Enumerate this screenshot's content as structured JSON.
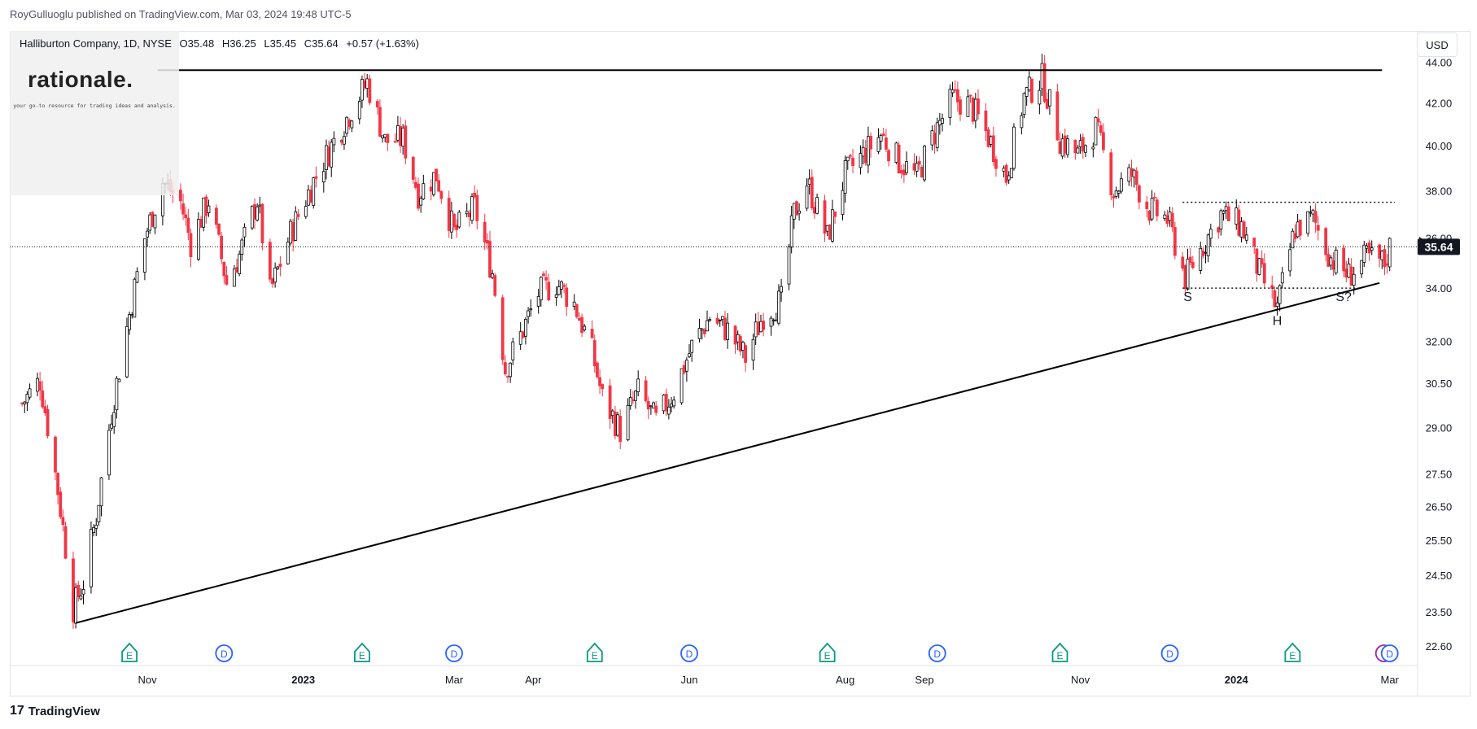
{
  "publisher": "RoyGulluoglu published on TradingView.com, Mar 03, 2024 19:48 UTC-5",
  "symbol": {
    "name": "Halliburton Company, 1D, NYSE",
    "open": "O35.48",
    "high": "H36.25",
    "low": "L35.45",
    "close": "C35.64",
    "change": "+0.57 (+1.63%)"
  },
  "logo": {
    "word": "rationale.",
    "tagline": "your go-to resource for trading ideas and analysis."
  },
  "currency": "USD",
  "footer": {
    "brand": "TradingView",
    "icon": "tradingview-logo-icon"
  },
  "colors": {
    "up": "#000000",
    "down": "#f23645",
    "trendline": "#000000",
    "event_green": "#089981",
    "event_blue": "#2962ff",
    "price_label_bg": "#131722"
  },
  "chart_data": {
    "type": "candlestick",
    "y_scale": "log",
    "ylim": [
      22.1,
      45.6
    ],
    "y_ticks": [
      "44.00",
      "42.00",
      "40.00",
      "38.00",
      "36.00",
      "34.00",
      "32.00",
      "30.50",
      "29.00",
      "27.50",
      "26.50",
      "25.50",
      "24.50",
      "23.50",
      "22.60"
    ],
    "x_ticks": [
      "Nov",
      "2023",
      "Mar",
      "Apr",
      "Jun",
      "Aug",
      "Sep",
      "Nov",
      "2024",
      "Mar"
    ],
    "last_price": "35.64",
    "price_path": [
      [
        "2022-09-13",
        29.8
      ],
      [
        "2022-09-20",
        30.6
      ],
      [
        "2022-09-27",
        27.0
      ],
      [
        "2022-10-03",
        23.6
      ],
      [
        "2022-10-07",
        24.3
      ],
      [
        "2022-10-12",
        26.2
      ],
      [
        "2022-10-18",
        29.5
      ],
      [
        "2022-10-24",
        32.5
      ],
      [
        "2022-10-31",
        36.0
      ],
      [
        "2022-11-07",
        38.4
      ],
      [
        "2022-11-14",
        37.5
      ],
      [
        "2022-11-18",
        35.8
      ],
      [
        "2022-11-25",
        37.6
      ],
      [
        "2022-12-02",
        34.2
      ],
      [
        "2022-12-07",
        35.3
      ],
      [
        "2022-12-14",
        37.6
      ],
      [
        "2022-12-19",
        33.8
      ],
      [
        "2022-12-27",
        36.2
      ],
      [
        "2023-01-05",
        38.4
      ],
      [
        "2023-01-13",
        40.2
      ],
      [
        "2023-01-26",
        43.0
      ],
      [
        "2023-02-02",
        40.2
      ],
      [
        "2023-02-09",
        40.3
      ],
      [
        "2023-02-15",
        37.9
      ],
      [
        "2023-02-22",
        38.7
      ],
      [
        "2023-03-01",
        36.2
      ],
      [
        "2023-03-09",
        37.3
      ],
      [
        "2023-03-16",
        34.6
      ],
      [
        "2023-03-21",
        31.0
      ],
      [
        "2023-03-27",
        32.2
      ],
      [
        "2023-04-03",
        33.8
      ],
      [
        "2023-04-10",
        34.2
      ],
      [
        "2023-04-17",
        33.4
      ],
      [
        "2023-04-24",
        31.6
      ],
      [
        "2023-04-28",
        30.0
      ],
      [
        "2023-05-05",
        28.9
      ],
      [
        "2023-05-12",
        30.2
      ],
      [
        "2023-05-19",
        29.2
      ],
      [
        "2023-05-26",
        30.2
      ],
      [
        "2023-06-02",
        31.8
      ],
      [
        "2023-06-09",
        32.9
      ],
      [
        "2023-06-16",
        32.4
      ],
      [
        "2023-06-23",
        31.4
      ],
      [
        "2023-06-30",
        33.0
      ],
      [
        "2023-07-07",
        33.5
      ],
      [
        "2023-07-12",
        37.0
      ],
      [
        "2023-07-17",
        38.4
      ],
      [
        "2023-07-25",
        36.0
      ],
      [
        "2023-08-01",
        38.7
      ],
      [
        "2023-08-08",
        39.6
      ],
      [
        "2023-08-15",
        40.5
      ],
      [
        "2023-08-22",
        39.3
      ],
      [
        "2023-08-29",
        38.6
      ],
      [
        "2023-09-05",
        40.6
      ],
      [
        "2023-09-12",
        42.2
      ],
      [
        "2023-09-19",
        41.9
      ],
      [
        "2023-09-26",
        40.4
      ],
      [
        "2023-10-03",
        38.6
      ],
      [
        "2023-10-10",
        42.3
      ],
      [
        "2023-10-17",
        43.2
      ],
      [
        "2023-10-24",
        40.3
      ],
      [
        "2023-10-31",
        39.6
      ],
      [
        "2023-11-07",
        40.8
      ],
      [
        "2023-11-14",
        38.0
      ],
      [
        "2023-11-21",
        38.7
      ],
      [
        "2023-11-28",
        37.2
      ],
      [
        "2023-12-05",
        36.8
      ],
      [
        "2023-12-12",
        34.4
      ],
      [
        "2023-12-19",
        35.7
      ],
      [
        "2023-12-26",
        37.0
      ],
      [
        "2024-01-03",
        36.5
      ],
      [
        "2024-01-10",
        34.6
      ],
      [
        "2024-01-17",
        33.2
      ],
      [
        "2024-01-24",
        36.4
      ],
      [
        "2024-01-31",
        36.8
      ],
      [
        "2024-02-07",
        35.2
      ],
      [
        "2024-02-14",
        34.5
      ],
      [
        "2024-02-21",
        35.2
      ],
      [
        "2024-02-28",
        35.0
      ],
      [
        "2024-03-01",
        35.64
      ]
    ],
    "drawings": {
      "resistance_line": {
        "from": [
          "2022-11-05",
          43.6
        ],
        "to": [
          "2024-02-27",
          43.6
        ]
      },
      "rising_trendline": {
        "from": [
          "2022-10-04",
          23.2
        ],
        "to": [
          "2024-02-26",
          34.2
        ]
      },
      "neckline_dotted": {
        "from": [
          "2023-12-11",
          37.5
        ],
        "to": [
          "2024-03-03",
          37.5
        ]
      },
      "shoulder_dotted": {
        "from": [
          "2023-12-11",
          34.0
        ],
        "to": [
          "2024-02-18",
          34.0
        ]
      },
      "last_price_dotted": 35.64
    },
    "annotations": [
      {
        "text": "S",
        "x": "2023-12-13",
        "y": 33.5
      },
      {
        "text": "H",
        "x": "2024-01-17",
        "y": 32.6
      },
      {
        "text": "S?",
        "x": "2024-02-12",
        "y": 33.5
      }
    ],
    "events": [
      {
        "type": "E",
        "x": "2022-10-25"
      },
      {
        "type": "D",
        "x": "2022-12-01"
      },
      {
        "type": "E",
        "x": "2023-01-24"
      },
      {
        "type": "D",
        "x": "2023-03-01"
      },
      {
        "type": "E",
        "x": "2023-04-25"
      },
      {
        "type": "D",
        "x": "2023-06-01"
      },
      {
        "type": "E",
        "x": "2023-07-25"
      },
      {
        "type": "D",
        "x": "2023-09-06"
      },
      {
        "type": "E",
        "x": "2023-10-24"
      },
      {
        "type": "D",
        "x": "2023-12-06"
      },
      {
        "type": "E",
        "x": "2024-01-23"
      },
      {
        "type": "D",
        "x": "2024-03-01"
      }
    ]
  }
}
